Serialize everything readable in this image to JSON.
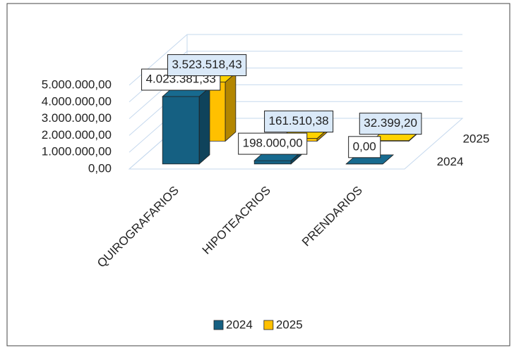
{
  "chart_data": {
    "type": "bar3d",
    "categories": [
      "QUIROGRAFARIOS",
      "HIPOTEACRIOS",
      "PRENDARIOS"
    ],
    "series": [
      {
        "name": "2024",
        "color": "#156082",
        "values": [
          4023381.33,
          198000,
          0
        ],
        "value_labels": [
          "4.023.381,33",
          "198.000,00",
          "0,00"
        ]
      },
      {
        "name": "2025",
        "color": "#ffc000",
        "values": [
          3523518.43,
          161510.38,
          32399.2
        ],
        "value_labels": [
          "3.523.518,43",
          "161.510,38",
          "32.399,20"
        ]
      }
    ],
    "ylim": [
      0,
      5000000
    ],
    "yticks": [
      {
        "value": 0,
        "label": "0,00"
      },
      {
        "value": 1000000,
        "label": "1.000.000,00"
      },
      {
        "value": 2000000,
        "label": "2.000.000,00"
      },
      {
        "value": 3000000,
        "label": "3.000.000,00"
      },
      {
        "value": 4000000,
        "label": "4.000.000,00"
      },
      {
        "value": 5000000,
        "label": "5.000.000,00"
      }
    ],
    "grid": true,
    "legend": "bottom"
  }
}
